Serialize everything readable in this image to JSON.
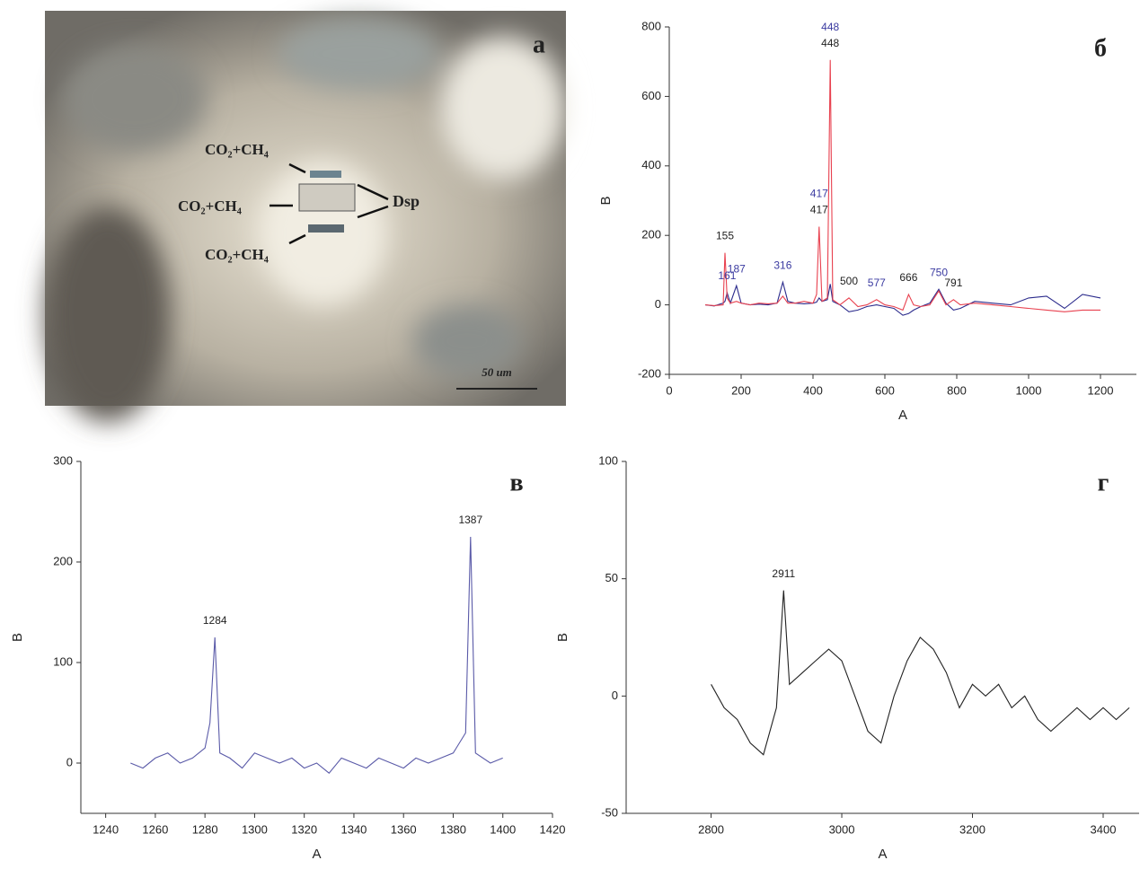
{
  "photo": {
    "panel_label": "а",
    "inclusions": [
      "CO₂+CH₄",
      "CO₂+CH₄",
      "CO₂+CH₄"
    ],
    "mineral": "Dsp",
    "scale_bar": "50 um"
  },
  "chart_data": [
    {
      "type": "line",
      "title": "б",
      "x_label": "А",
      "y_label": "В",
      "xlim": [
        0,
        1300
      ],
      "xticks": [
        0,
        200,
        400,
        600,
        800,
        1000,
        1200
      ],
      "ylim": [
        -200,
        800
      ],
      "yticks": [
        -200,
        0,
        200,
        400,
        600,
        800
      ],
      "x": [
        100,
        125,
        150,
        155,
        161,
        170,
        187,
        200,
        225,
        250,
        275,
        300,
        316,
        330,
        350,
        375,
        400,
        410,
        417,
        425,
        440,
        448,
        455,
        475,
        500,
        525,
        550,
        577,
        600,
        625,
        650,
        666,
        680,
        700,
        725,
        750,
        770,
        791,
        810,
        850,
        900,
        950,
        1000,
        1050,
        1100,
        1150,
        1200
      ],
      "series": [
        {
          "color": "#2b2b8c",
          "values": [
            0,
            -3,
            5,
            10,
            35,
            5,
            55,
            5,
            0,
            2,
            0,
            5,
            65,
            10,
            5,
            3,
            5,
            8,
            20,
            10,
            15,
            60,
            10,
            0,
            -20,
            -15,
            -5,
            0,
            -5,
            -10,
            -30,
            -25,
            -15,
            -5,
            5,
            45,
            5,
            -15,
            -10,
            10,
            5,
            0,
            20,
            25,
            -10,
            30,
            20
          ]
        },
        {
          "color": "#e8414f",
          "values": [
            0,
            -2,
            0,
            150,
            20,
            5,
            10,
            5,
            0,
            5,
            3,
            5,
            25,
            5,
            5,
            10,
            5,
            30,
            225,
            10,
            20,
            705,
            15,
            0,
            20,
            -5,
            0,
            15,
            0,
            -5,
            -15,
            30,
            0,
            -5,
            0,
            40,
            0,
            15,
            0,
            5,
            0,
            -5,
            -10,
            -15,
            -20,
            -15,
            -15
          ]
        }
      ],
      "peak_labels": [
        {
          "label": "448",
          "x": 448,
          "color": "#222222"
        },
        {
          "label": "448",
          "x": 448,
          "color": "#3a3aa0"
        },
        {
          "label": "417",
          "x": 417,
          "color": "#222222"
        },
        {
          "label": "417",
          "x": 417,
          "color": "#3a3aa0"
        },
        {
          "label": "155",
          "x": 155,
          "color": "#222222"
        },
        {
          "label": "161",
          "x": 161,
          "color": "#3a3aa0"
        },
        {
          "label": "187",
          "x": 187,
          "color": "#3a3aa0"
        },
        {
          "label": "316",
          "x": 316,
          "color": "#3a3aa0"
        },
        {
          "label": "500",
          "x": 500,
          "color": "#222222"
        },
        {
          "label": "577",
          "x": 577,
          "color": "#3a3aa0"
        },
        {
          "label": "666",
          "x": 666,
          "color": "#222222"
        },
        {
          "label": "750",
          "x": 750,
          "color": "#3a3aa0"
        },
        {
          "label": "791",
          "x": 791,
          "color": "#222222"
        }
      ]
    },
    {
      "type": "line",
      "title": "в",
      "x_label": "А",
      "y_label": "В",
      "xlim": [
        1230,
        1420
      ],
      "xticks": [
        1240,
        1260,
        1280,
        1300,
        1320,
        1340,
        1360,
        1380,
        1400,
        1420
      ],
      "ylim": [
        -50,
        300
      ],
      "yticks": [
        0,
        100,
        200,
        300
      ],
      "x": [
        1250,
        1255,
        1260,
        1265,
        1270,
        1275,
        1280,
        1282,
        1284,
        1286,
        1290,
        1295,
        1300,
        1305,
        1310,
        1315,
        1320,
        1325,
        1330,
        1335,
        1340,
        1345,
        1350,
        1355,
        1360,
        1365,
        1370,
        1375,
        1380,
        1385,
        1387,
        1389,
        1395,
        1400
      ],
      "series": [
        {
          "color": "#5a5aa8",
          "values": [
            0,
            -5,
            5,
            10,
            0,
            5,
            15,
            40,
            125,
            10,
            5,
            -5,
            10,
            5,
            0,
            5,
            -5,
            0,
            -10,
            5,
            0,
            -5,
            5,
            0,
            -5,
            5,
            0,
            5,
            10,
            30,
            225,
            10,
            0,
            5
          ]
        }
      ],
      "peak_labels": [
        {
          "label": "1284",
          "x": 1284,
          "color": "#222222"
        },
        {
          "label": "1387",
          "x": 1387,
          "color": "#222222"
        }
      ]
    },
    {
      "type": "line",
      "title": "г",
      "x_label": "А",
      "y_label": "В",
      "xlim": [
        2670,
        3455
      ],
      "xticks": [
        2800,
        3000,
        3200,
        3400
      ],
      "ylim": [
        -50,
        100
      ],
      "yticks": [
        -50,
        0,
        50,
        100
      ],
      "x": [
        2800,
        2820,
        2840,
        2860,
        2880,
        2900,
        2911,
        2920,
        2940,
        2960,
        2980,
        3000,
        3020,
        3040,
        3060,
        3080,
        3100,
        3120,
        3140,
        3160,
        3180,
        3200,
        3220,
        3240,
        3260,
        3280,
        3300,
        3320,
        3340,
        3360,
        3380,
        3400,
        3420,
        3440
      ],
      "series": [
        {
          "color": "#222222",
          "values": [
            5,
            -5,
            -10,
            -20,
            -25,
            -5,
            45,
            5,
            10,
            15,
            20,
            15,
            0,
            -15,
            -20,
            0,
            15,
            25,
            20,
            10,
            -5,
            5,
            0,
            5,
            -5,
            0,
            -10,
            -15,
            -10,
            -5,
            -10,
            -5,
            -10,
            -5
          ]
        }
      ],
      "peak_labels": [
        {
          "label": "2911",
          "x": 2911,
          "color": "#222222"
        }
      ]
    }
  ]
}
